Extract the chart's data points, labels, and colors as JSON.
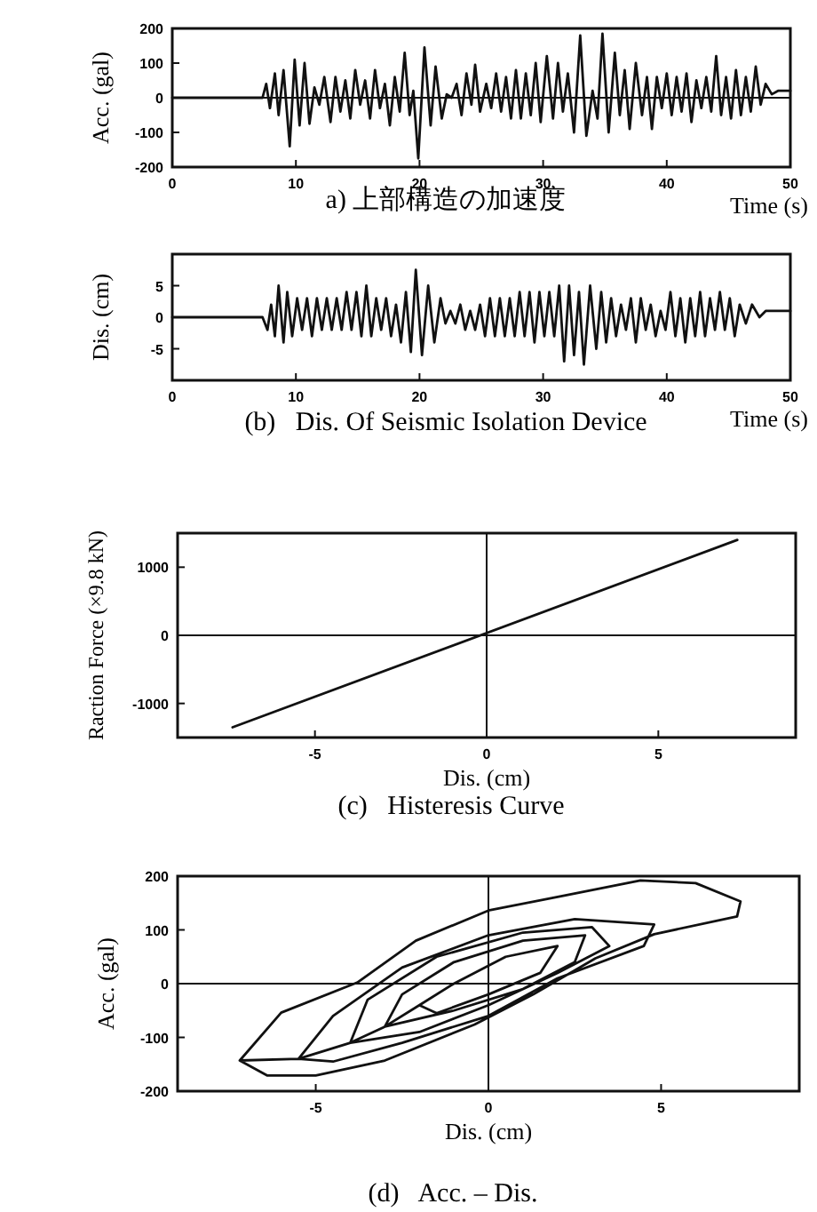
{
  "chart_data": [
    {
      "type": "line",
      "title": "a) 上部構造の加速度",
      "xlabel": "Time (s)",
      "ylabel": "Acc. (gal)",
      "xlim": [
        0,
        50
      ],
      "xticks": [
        0,
        10,
        20,
        30,
        40,
        50
      ],
      "ylim": [
        -200,
        200
      ],
      "yticks": [
        -200,
        -100,
        0,
        100,
        200
      ],
      "ref_lines": [
        {
          "axis": "y",
          "value": 0
        }
      ],
      "series": [
        {
          "color": "#111111",
          "x": [
            0,
            7.3,
            7.6,
            7.9,
            8.3,
            8.6,
            9.0,
            9.5,
            9.9,
            10.3,
            10.7,
            11.1,
            11.5,
            11.9,
            12.3,
            12.8,
            13.2,
            13.6,
            14.0,
            14.4,
            14.8,
            15.2,
            15.6,
            16.0,
            16.4,
            16.8,
            17.2,
            17.6,
            18.0,
            18.4,
            18.8,
            19.2,
            19.5,
            19.9,
            20.4,
            20.9,
            21.3,
            21.8,
            22.2,
            22.6,
            23.0,
            23.4,
            23.8,
            24.2,
            24.5,
            24.9,
            25.4,
            25.8,
            26.2,
            26.6,
            27.0,
            27.4,
            27.8,
            28.2,
            28.6,
            29.0,
            29.4,
            29.8,
            30.3,
            30.8,
            31.2,
            31.6,
            32.0,
            32.5,
            33.0,
            33.5,
            34.0,
            34.4,
            34.8,
            35.3,
            35.8,
            36.2,
            36.6,
            37.0,
            37.5,
            38.0,
            38.4,
            38.8,
            39.2,
            39.6,
            40.0,
            40.4,
            40.8,
            41.2,
            41.6,
            42.0,
            42.4,
            42.8,
            43.2,
            43.6,
            44.0,
            44.4,
            44.8,
            45.2,
            45.6,
            46.0,
            46.4,
            46.8,
            47.2,
            47.6,
            48.0,
            48.5,
            49.0,
            50
          ],
          "values": [
            0,
            0,
            40,
            -30,
            70,
            -50,
            80,
            -140,
            110,
            -80,
            100,
            -75,
            30,
            -20,
            60,
            -70,
            60,
            -40,
            50,
            -60,
            80,
            -20,
            50,
            -60,
            80,
            -30,
            40,
            -80,
            60,
            -40,
            130,
            -50,
            20,
            -175,
            145,
            -80,
            90,
            -60,
            10,
            0,
            40,
            -50,
            70,
            -20,
            95,
            -40,
            40,
            -30,
            70,
            -40,
            60,
            -60,
            80,
            -60,
            70,
            -50,
            100,
            -70,
            120,
            -60,
            100,
            -40,
            70,
            -100,
            180,
            -110,
            20,
            -60,
            185,
            -100,
            130,
            -50,
            80,
            -90,
            100,
            -50,
            60,
            -90,
            60,
            -30,
            70,
            -50,
            60,
            -40,
            70,
            -70,
            50,
            -30,
            60,
            -40,
            120,
            -50,
            60,
            -60,
            80,
            -50,
            60,
            -40,
            90,
            -20,
            40,
            10,
            20,
            20
          ]
        }
      ]
    },
    {
      "type": "line",
      "title": "(b)   Dis. Of Seismic Isolation Device",
      "xlabel": "Time (s)",
      "ylabel": "Dis. (cm)",
      "xlim": [
        0,
        50
      ],
      "xticks": [
        0,
        10,
        20,
        30,
        40,
        50
      ],
      "ylim": [
        -10,
        10
      ],
      "yticks": [
        -5,
        0,
        5
      ],
      "series": [
        {
          "color": "#111111",
          "x": [
            0,
            7.3,
            7.7,
            8.0,
            8.3,
            8.6,
            9.0,
            9.3,
            9.7,
            10.1,
            10.5,
            10.9,
            11.3,
            11.7,
            12.1,
            12.5,
            12.9,
            13.3,
            13.7,
            14.1,
            14.5,
            14.9,
            15.3,
            15.7,
            16.1,
            16.5,
            16.9,
            17.3,
            17.7,
            18.1,
            18.5,
            18.9,
            19.3,
            19.7,
            20.2,
            20.7,
            21.2,
            21.7,
            22.1,
            22.5,
            22.9,
            23.3,
            23.7,
            24.1,
            24.5,
            24.9,
            25.3,
            25.7,
            26.1,
            26.5,
            26.9,
            27.3,
            27.7,
            28.1,
            28.5,
            28.9,
            29.3,
            29.7,
            30.1,
            30.5,
            30.9,
            31.3,
            31.7,
            32.1,
            32.5,
            32.9,
            33.3,
            33.8,
            34.3,
            34.7,
            35.1,
            35.5,
            35.9,
            36.3,
            36.7,
            37.1,
            37.5,
            37.9,
            38.3,
            38.7,
            39.1,
            39.5,
            39.9,
            40.3,
            40.7,
            41.1,
            41.5,
            41.9,
            42.3,
            42.7,
            43.1,
            43.5,
            43.9,
            44.3,
            44.7,
            45.1,
            45.5,
            45.9,
            46.4,
            46.9,
            47.5,
            48,
            49,
            50
          ],
          "values": [
            0,
            0,
            -2,
            2,
            -3,
            5,
            -4,
            4,
            -3,
            3,
            -2,
            3,
            -3,
            3,
            -2,
            3,
            -2,
            3,
            -2,
            4,
            -2,
            4,
            -3,
            5,
            -3,
            3,
            -2,
            3,
            -3,
            2,
            -4,
            4,
            -5.5,
            7.5,
            -6,
            5,
            -4,
            3,
            -1,
            1,
            -1,
            2,
            -2,
            1,
            -2,
            2,
            -3,
            3,
            -3,
            3,
            -3,
            3,
            -3,
            4,
            -3,
            4,
            -4,
            4,
            -3,
            4,
            -3,
            5,
            -7,
            5,
            -6,
            4,
            -7.5,
            5,
            -5,
            4,
            -4,
            3,
            -3,
            2,
            -2,
            3,
            -4,
            3,
            -2,
            2,
            -3,
            1,
            -2,
            4,
            -3,
            3,
            -4,
            3,
            -3,
            4,
            -3,
            3,
            -2,
            4,
            -2,
            3,
            -3,
            2,
            -1,
            2,
            0,
            1,
            1,
            1
          ]
        }
      ]
    },
    {
      "type": "line",
      "title": "(c)   Histeresis Curve",
      "xlabel": "Dis. (cm)",
      "ylabel": "Raction Force (×9.8 kN)",
      "xlim": [
        -9,
        9
      ],
      "xticks": [
        -5,
        0,
        5
      ],
      "ylim": [
        -1500,
        1500
      ],
      "yticks": [
        -1000,
        0,
        1000
      ],
      "ref_lines": [
        {
          "axis": "x",
          "value": 0
        },
        {
          "axis": "y",
          "value": 0
        }
      ],
      "series": [
        {
          "color": "#111111",
          "x": [
            -7.4,
            7.3
          ],
          "values": [
            -1350,
            1400
          ]
        }
      ]
    },
    {
      "type": "line",
      "title": "(d)   Acc. – Dis.",
      "xlabel": "Dis. (cm)",
      "ylabel": "Acc. (gal)",
      "xlim": [
        -9,
        9
      ],
      "xticks": [
        -5,
        0,
        5
      ],
      "ylim": [
        -200,
        200
      ],
      "yticks": [
        -200,
        -100,
        0,
        100,
        200
      ],
      "ref_lines": [
        {
          "axis": "x",
          "value": 0
        },
        {
          "axis": "y",
          "value": 0
        }
      ],
      "series": [
        {
          "color": "#111111",
          "x": [
            -7.2,
            -6.0,
            -3.8,
            -2.1,
            0,
            2.2,
            4.4,
            6.0,
            7.3,
            7.2,
            4.8,
            3.1,
            1.3,
            -0.4,
            -3.0,
            -5.0,
            -6.4,
            -7.2,
            -5.5,
            -4.5,
            -2.5,
            0,
            2.5,
            4.8,
            4.5,
            2.0,
            0,
            -2.5,
            -4.5,
            -5.5,
            -4.0,
            -3.5,
            -1.5,
            1.0,
            3.0,
            3.5,
            2.0,
            0,
            -2.0,
            -4.0,
            -3.0,
            -2.5,
            -1.0,
            1.0,
            2.8,
            2.5,
            1.0,
            -1.0,
            -3.0,
            -2.0,
            -1.0,
            0.5,
            2.0,
            1.5,
            0,
            -1.5,
            -2.0
          ],
          "values": [
            -143,
            -54,
            2,
            80,
            136,
            164,
            192,
            187,
            153,
            125,
            92,
            47,
            -20,
            -76,
            -143,
            -171,
            -171,
            -143,
            -140,
            -60,
            30,
            90,
            120,
            110,
            70,
            10,
            -60,
            -110,
            -145,
            -140,
            -110,
            -30,
            50,
            95,
            105,
            70,
            20,
            -40,
            -90,
            -110,
            -80,
            -20,
            40,
            80,
            90,
            40,
            -10,
            -50,
            -80,
            -40,
            0,
            50,
            70,
            20,
            -20,
            -55,
            -40
          ]
        }
      ]
    }
  ]
}
